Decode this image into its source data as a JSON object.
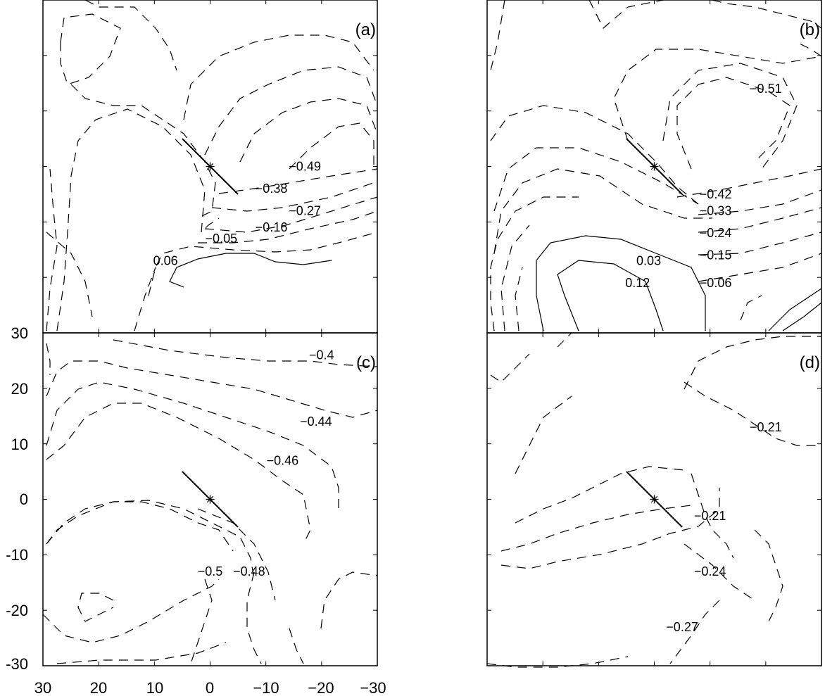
{
  "chart_data": {
    "type": "contour",
    "x_ticks": [
      "30",
      "20",
      "10",
      "0",
      "−10",
      "−20",
      "−30"
    ],
    "y_ticks": [
      "30",
      "20",
      "10",
      "0",
      "-10",
      "-20",
      "-30"
    ],
    "xlim": [
      30,
      -30
    ],
    "ylim": [
      -30,
      30
    ],
    "panels": [
      {
        "id": "a",
        "label": "(a)",
        "contour_labels": [
          {
            "text": "−0.49",
            "x": -17,
            "y": 0
          },
          {
            "text": "−0.38",
            "x": -11,
            "y": -4
          },
          {
            "text": "−0.27",
            "x": -17,
            "y": -8
          },
          {
            "text": "−0.16",
            "x": -11,
            "y": -11
          },
          {
            "text": "−0.05",
            "x": -2,
            "y": -13
          },
          {
            "text": "0.06",
            "x": 8,
            "y": -17
          }
        ]
      },
      {
        "id": "b",
        "label": "(b)",
        "contour_labels": [
          {
            "text": "−0.51",
            "x": -20,
            "y": 14
          },
          {
            "text": "−0.42",
            "x": -11,
            "y": -5
          },
          {
            "text": "−0.33",
            "x": -11,
            "y": -8
          },
          {
            "text": "−0.24",
            "x": -11,
            "y": -12
          },
          {
            "text": "−0.15",
            "x": -11,
            "y": -16
          },
          {
            "text": "0.03",
            "x": 1,
            "y": -17
          },
          {
            "text": "0.12",
            "x": 3,
            "y": -21
          },
          {
            "text": "−0.06",
            "x": -11,
            "y": -21
          }
        ]
      },
      {
        "id": "c",
        "label": "(c)",
        "contour_labels": [
          {
            "text": "−0.4",
            "x": -20,
            "y": 26
          },
          {
            "text": "−0.44",
            "x": -19,
            "y": 14
          },
          {
            "text": "−0.46",
            "x": -13,
            "y": 7
          },
          {
            "text": "−0.5",
            "x": 0,
            "y": -13
          },
          {
            "text": "−0.48",
            "x": -7,
            "y": -13
          }
        ]
      },
      {
        "id": "d",
        "label": "(d)",
        "contour_labels": [
          {
            "text": "−0.21",
            "x": -20,
            "y": 13
          },
          {
            "text": "−0.21",
            "x": -10,
            "y": -3
          },
          {
            "text": "−0.24",
            "x": -10,
            "y": -13
          },
          {
            "text": "−0.27",
            "x": -5,
            "y": -23
          }
        ]
      }
    ]
  }
}
